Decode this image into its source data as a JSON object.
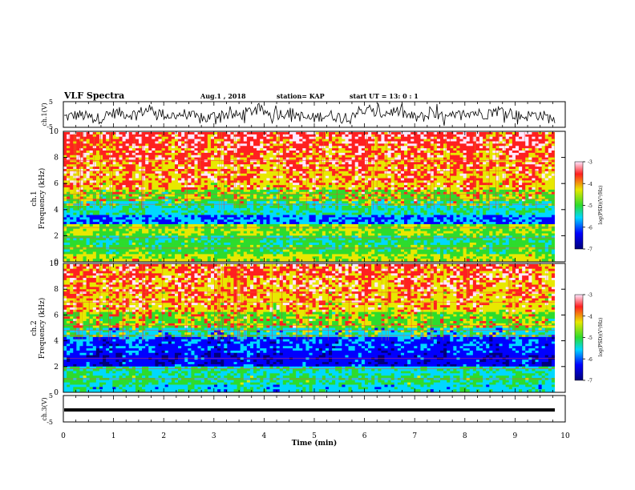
{
  "header": {
    "title": "VLF Spectra",
    "date": "Aug.1  , 2018",
    "station": "station= KAP",
    "start": "start  UT  =   13: 0  : 1"
  },
  "chart_data": [
    {
      "type": "line",
      "ylabel": "ch.1(V)",
      "ylim": [
        -5,
        5
      ],
      "yticks": [
        "5",
        "-5"
      ],
      "series_description": "noisy waveform oscillating roughly between -3 and 3 V"
    },
    {
      "type": "heatmap",
      "ylabel": "ch.1\nFrequency (kHz)",
      "ylabel_line1": "ch.1",
      "ylabel_line2": "Frequency (kHz)",
      "ylim": [
        0,
        10
      ],
      "yticks": [
        "0",
        "2",
        "4",
        "6",
        "8",
        "10"
      ],
      "colorbar": {
        "label": "log(PSD)(V²/Hz)",
        "range": [
          -7,
          -3
        ],
        "ticks": [
          "-3",
          "-4",
          "-5",
          "-6",
          "-7"
        ]
      }
    },
    {
      "type": "heatmap",
      "ylabel": "ch.2\nFrequency (kHz)",
      "ylabel_line1": "ch.2",
      "ylabel_line2": "Frequency (kHz)",
      "ylim": [
        0,
        10
      ],
      "yticks": [
        "0",
        "2",
        "4",
        "6",
        "8",
        "10"
      ],
      "colorbar": {
        "label": "log(PSD)(V²/Hz)",
        "range": [
          -7,
          -3
        ],
        "ticks": [
          "-3",
          "-4",
          "-5",
          "-6",
          "-7"
        ]
      }
    },
    {
      "type": "line",
      "ylabel": "ch.3(V)",
      "ylim": [
        -5,
        5
      ],
      "yticks": [
        "5",
        "-5"
      ],
      "series_description": "flat line near -1.5 V"
    }
  ],
  "xaxis": {
    "label": "Time (min)",
    "xlim": [
      0,
      10
    ],
    "ticks": [
      "0",
      "1",
      "2",
      "3",
      "4",
      "5",
      "6",
      "7",
      "8",
      "9",
      "10"
    ]
  },
  "colors": {
    "scale": [
      "#00007a",
      "#0000ff",
      "#00d8ff",
      "#2ddc2d",
      "#e8e800",
      "#ff2020",
      "#ffe8ff"
    ]
  }
}
